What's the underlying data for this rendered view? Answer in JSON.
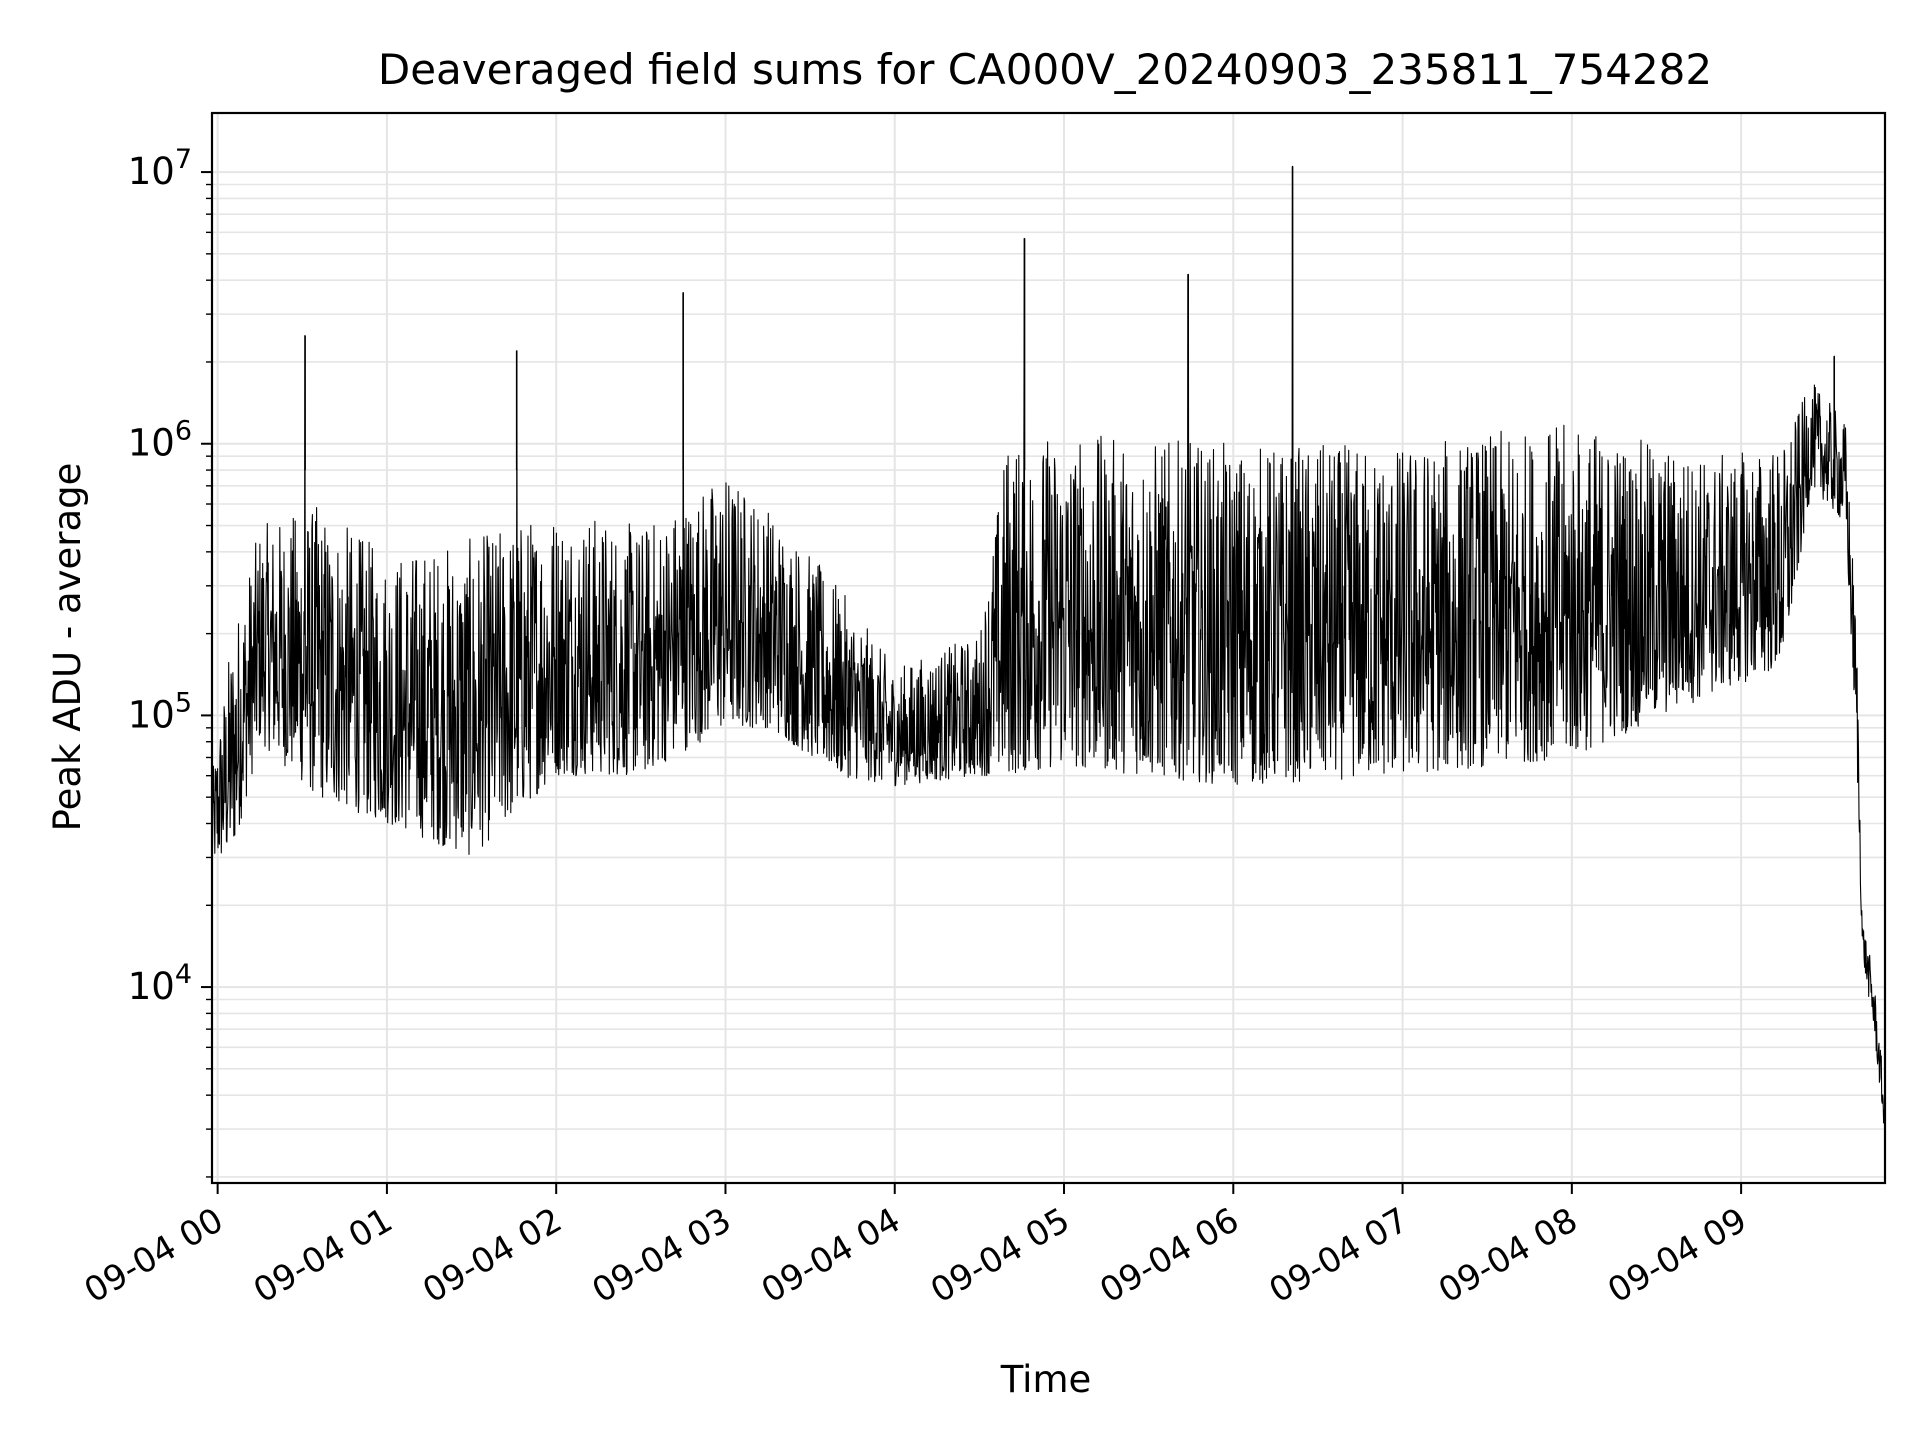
{
  "chart_data": {
    "type": "line",
    "title": "Deaveraged field sums for CA000V_20240903_235811_754282",
    "xlabel": "Time",
    "ylabel": "Peak ADU - average",
    "yscale": "log",
    "ylim": [
      1900,
      16500000
    ],
    "xlim": [
      "2024-09-03 23:58:00",
      "2024-09-04 09:51:00"
    ],
    "x_tick_labels": [
      "09-04 00",
      "09-04 01",
      "09-04 02",
      "09-04 03",
      "09-04 04",
      "09-04 05",
      "09-04 06",
      "09-04 07",
      "09-04 08",
      "09-04 09"
    ],
    "x_ticks": [
      "2024-09-04 00:00",
      "2024-09-04 01:00",
      "2024-09-04 02:00",
      "2024-09-04 03:00",
      "2024-09-04 04:00",
      "2024-09-04 05:00",
      "2024-09-04 06:00",
      "2024-09-04 07:00",
      "2024-09-04 08:00",
      "2024-09-04 09:00"
    ],
    "y_tick_exponents": [
      4,
      5,
      6,
      7
    ],
    "y_tick_base": "10",
    "grid": true,
    "legend": "none",
    "line_color": "#000000",
    "grid_color": "#e5e5e5",
    "envelope": [
      {
        "x": "2024-09-03 23:58",
        "low": 28000,
        "high": 60000
      },
      {
        "x": "2024-09-04 00:05",
        "low": 30000,
        "high": 200000
      },
      {
        "x": "2024-09-04 00:15",
        "low": 80000,
        "high": 500000
      },
      {
        "x": "2024-09-04 00:35",
        "low": 50000,
        "high": 600000
      },
      {
        "x": "2024-09-04 01:00",
        "low": 40000,
        "high": 400000
      },
      {
        "x": "2024-09-04 01:30",
        "low": 30000,
        "high": 450000
      },
      {
        "x": "2024-09-04 02:00",
        "low": 60000,
        "high": 600000
      },
      {
        "x": "2024-09-04 02:30",
        "low": 60000,
        "high": 500000
      },
      {
        "x": "2024-09-04 03:00",
        "low": 90000,
        "high": 800000
      },
      {
        "x": "2024-09-04 03:15",
        "low": 90000,
        "high": 600000
      },
      {
        "x": "2024-09-04 03:40",
        "low": 60000,
        "high": 300000
      },
      {
        "x": "2024-09-04 04:00",
        "low": 55000,
        "high": 150000
      },
      {
        "x": "2024-09-04 04:30",
        "low": 60000,
        "high": 200000
      },
      {
        "x": "2024-09-04 04:40",
        "low": 60000,
        "high": 1100000
      },
      {
        "x": "2024-09-04 05:00",
        "low": 65000,
        "high": 1100000
      },
      {
        "x": "2024-09-04 06:00",
        "low": 55000,
        "high": 1000000
      },
      {
        "x": "2024-09-04 07:00",
        "low": 60000,
        "high": 1000000
      },
      {
        "x": "2024-09-04 08:00",
        "low": 70000,
        "high": 1200000
      },
      {
        "x": "2024-09-04 08:50",
        "low": 120000,
        "high": 900000
      },
      {
        "x": "2024-09-04 09:15",
        "low": 150000,
        "high": 1000000
      },
      {
        "x": "2024-09-04 09:25",
        "low": 700000,
        "high": 1700000
      },
      {
        "x": "2024-09-04 09:37",
        "low": 500000,
        "high": 1200000
      },
      {
        "x": "2024-09-04 09:41",
        "low": 70000,
        "high": 200000
      },
      {
        "x": "2024-09-04 09:43",
        "low": 13000,
        "high": 18000
      },
      {
        "x": "2024-09-04 09:47",
        "low": 7000,
        "high": 11000
      },
      {
        "x": "2024-09-04 09:51",
        "low": 2800,
        "high": 4000
      }
    ],
    "spikes": [
      {
        "x": "2024-09-04 00:31",
        "y": 2500000
      },
      {
        "x": "2024-09-04 01:46",
        "y": 2200000
      },
      {
        "x": "2024-09-04 02:45",
        "y": 3600000
      },
      {
        "x": "2024-09-04 04:46",
        "y": 5700000
      },
      {
        "x": "2024-09-04 05:44",
        "y": 4200000
      },
      {
        "x": "2024-09-04 06:21",
        "y": 10500000
      },
      {
        "x": "2024-09-04 09:33",
        "y": 2100000
      }
    ]
  }
}
